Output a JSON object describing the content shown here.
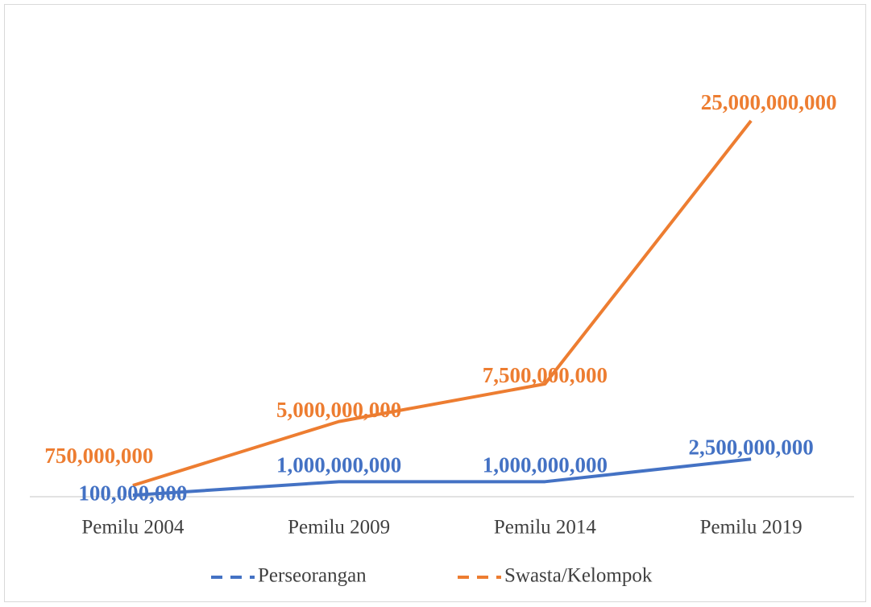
{
  "chart_data": {
    "type": "line",
    "categories": [
      "Pemilu 2004",
      "Pemilu 2009",
      "Pemilu 2014",
      "Pemilu 2019"
    ],
    "series": [
      {
        "name": "Perseorangan",
        "color": "#4472c4",
        "values": [
          100000000,
          1000000000,
          1000000000,
          2500000000
        ],
        "value_labels": [
          "100,000,000",
          "1,000,000,000",
          "1,000,000,000",
          "2,500,000,000"
        ]
      },
      {
        "name": "Swasta/Kelompok",
        "color": "#ed7d31",
        "values": [
          750000000,
          5000000000,
          7500000000,
          25000000000
        ],
        "value_labels": [
          "750,000,000",
          "5,000,000,000",
          "7,500,000,000",
          "25,000,000,000"
        ]
      }
    ],
    "legend": "bottom"
  }
}
